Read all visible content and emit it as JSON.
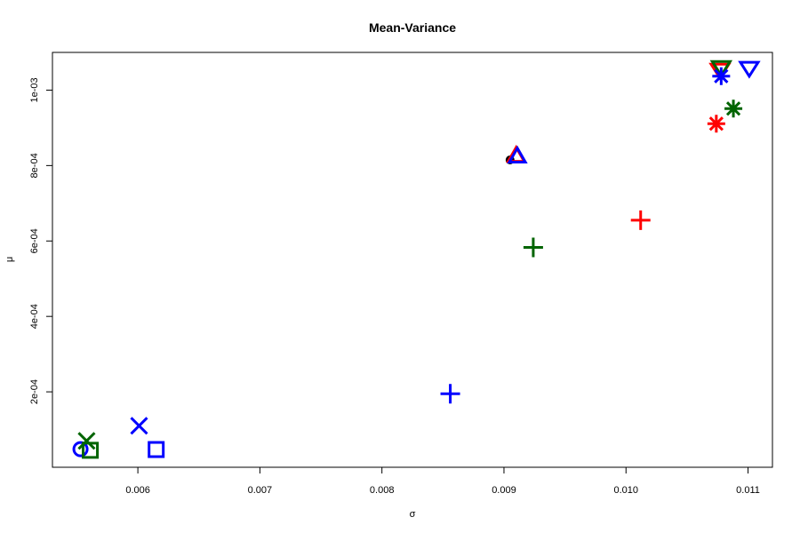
{
  "chart_data": {
    "type": "scatter",
    "title": "Mean-Variance",
    "xlabel": "σ",
    "ylabel": "μ",
    "xlim": [
      0.0053,
      0.0112
    ],
    "ylim": [
      0.0,
      0.0011
    ],
    "x_ticks": [
      {
        "value": 0.006,
        "label": "0.006"
      },
      {
        "value": 0.007,
        "label": "0.007"
      },
      {
        "value": 0.008,
        "label": "0.008"
      },
      {
        "value": 0.009,
        "label": "0.009"
      },
      {
        "value": 0.01,
        "label": "0.010"
      },
      {
        "value": 0.011,
        "label": "0.011"
      }
    ],
    "y_ticks": [
      {
        "value": 0.0002,
        "label": "2e-04"
      },
      {
        "value": 0.0004,
        "label": "4e-04"
      },
      {
        "value": 0.0006,
        "label": "6e-04"
      },
      {
        "value": 0.0008,
        "label": "8e-04"
      },
      {
        "value": 0.001,
        "label": "1e-03"
      }
    ],
    "grid": false,
    "colors": {
      "red": "#ff0000",
      "green": "#006400",
      "blue": "#0000ff",
      "black": "#000000"
    },
    "points": [
      {
        "x": 0.00553,
        "y": 4.8e-05,
        "shape": "circle",
        "color": "#0000ff"
      },
      {
        "x": 0.00558,
        "y": 7e-05,
        "shape": "x",
        "color": "#006400"
      },
      {
        "x": 0.00561,
        "y": 4.5e-05,
        "shape": "square",
        "color": "#006400"
      },
      {
        "x": 0.00601,
        "y": 0.00011,
        "shape": "x",
        "color": "#0000ff"
      },
      {
        "x": 0.00615,
        "y": 4.7e-05,
        "shape": "square",
        "color": "#0000ff"
      },
      {
        "x": 0.00856,
        "y": 0.000195,
        "shape": "plus",
        "color": "#0000ff"
      },
      {
        "x": 0.00905,
        "y": 0.000815,
        "shape": "dot",
        "color": "#000000"
      },
      {
        "x": 0.0091,
        "y": 0.000827,
        "shape": "triangle-up",
        "color": "#ff0000"
      },
      {
        "x": 0.00911,
        "y": 0.000825,
        "shape": "triangle-up",
        "color": "#0000ff"
      },
      {
        "x": 0.00924,
        "y": 0.000583,
        "shape": "plus",
        "color": "#006400"
      },
      {
        "x": 0.01012,
        "y": 0.000655,
        "shape": "plus",
        "color": "#ff0000"
      },
      {
        "x": 0.01074,
        "y": 0.000911,
        "shape": "asterisk",
        "color": "#ff0000"
      },
      {
        "x": 0.01077,
        "y": 0.001053,
        "shape": "triangle-down",
        "color": "#ff0000"
      },
      {
        "x": 0.01078,
        "y": 0.00106,
        "shape": "triangle-down",
        "color": "#006400"
      },
      {
        "x": 0.01078,
        "y": 0.001037,
        "shape": "asterisk",
        "color": "#0000ff"
      },
      {
        "x": 0.01088,
        "y": 0.000951,
        "shape": "asterisk",
        "color": "#006400"
      },
      {
        "x": 0.01101,
        "y": 0.001058,
        "shape": "triangle-down",
        "color": "#0000ff"
      }
    ]
  }
}
